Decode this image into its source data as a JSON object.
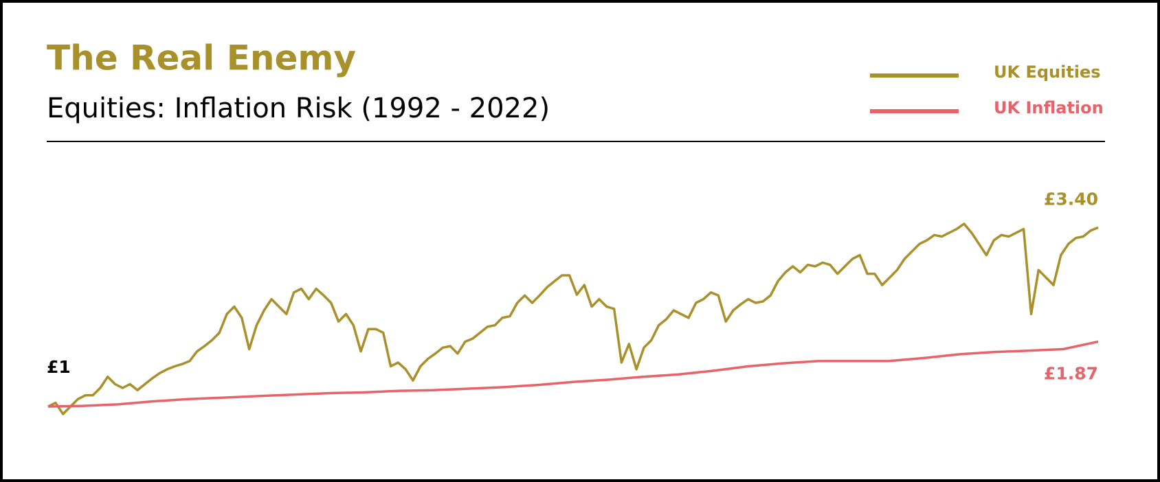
{
  "chart_data": {
    "type": "line",
    "title": "The Real Enemy",
    "subtitle": "Equities: Inflation Risk (1992 - 2022)",
    "series": [
      {
        "name": "UK Equities",
        "color": "#a8902b",
        "values": [
          1.0,
          1.05,
          0.9,
          1.0,
          1.1,
          1.15,
          1.15,
          1.25,
          1.4,
          1.3,
          1.25,
          1.3,
          1.22,
          1.3,
          1.38,
          1.45,
          1.5,
          1.54,
          1.57,
          1.61,
          1.74,
          1.81,
          1.89,
          1.99,
          2.24,
          2.34,
          2.19,
          1.77,
          2.09,
          2.29,
          2.44,
          2.34,
          2.24,
          2.53,
          2.58,
          2.44,
          2.58,
          2.49,
          2.39,
          2.14,
          2.24,
          2.09,
          1.74,
          2.04,
          2.04,
          1.99,
          1.54,
          1.59,
          1.5,
          1.35,
          1.54,
          1.64,
          1.71,
          1.79,
          1.81,
          1.71,
          1.87,
          1.91,
          1.99,
          2.07,
          2.09,
          2.19,
          2.21,
          2.39,
          2.49,
          2.39,
          2.49,
          2.6,
          2.68,
          2.76,
          2.76,
          2.5,
          2.63,
          2.34,
          2.44,
          2.34,
          2.31,
          1.59,
          1.84,
          1.5,
          1.79,
          1.89,
          2.09,
          2.17,
          2.29,
          2.24,
          2.19,
          2.39,
          2.44,
          2.53,
          2.49,
          2.14,
          2.29,
          2.37,
          2.44,
          2.39,
          2.41,
          2.49,
          2.68,
          2.8,
          2.88,
          2.8,
          2.9,
          2.88,
          2.93,
          2.9,
          2.78,
          2.88,
          2.98,
          3.03,
          2.78,
          2.78,
          2.63,
          2.73,
          2.83,
          2.98,
          3.08,
          3.18,
          3.23,
          3.3,
          3.28,
          3.33,
          3.38,
          3.45,
          3.33,
          3.18,
          3.03,
          3.23,
          3.3,
          3.28,
          3.33,
          3.38,
          2.24,
          2.83,
          2.73,
          2.63,
          3.03,
          3.18,
          3.26,
          3.28,
          3.36,
          3.4
        ],
        "value_labels": [
          "£1",
          null,
          null,
          null,
          null,
          null,
          null,
          null,
          null,
          null,
          null,
          null,
          null,
          null,
          null,
          null,
          null,
          null,
          null,
          null,
          null,
          null,
          null,
          null,
          null,
          null,
          null,
          null,
          null,
          null,
          null,
          null,
          null,
          null,
          null,
          null,
          null,
          null,
          null,
          null,
          null,
          null,
          null,
          null,
          null,
          null,
          null,
          null,
          null,
          null,
          null,
          null,
          null,
          null,
          null,
          null,
          null,
          null,
          null,
          null,
          null,
          null,
          null,
          null,
          null,
          null,
          null,
          null,
          null,
          null,
          null,
          null,
          null,
          null,
          null,
          null,
          null,
          null,
          null,
          null,
          null,
          null,
          null,
          null,
          null,
          null,
          null,
          null,
          null,
          null,
          null,
          null,
          null,
          null,
          null,
          null,
          null,
          null,
          null,
          null,
          null,
          null,
          null,
          null,
          null,
          null,
          null,
          null,
          null,
          null,
          null,
          null,
          null,
          null,
          null,
          null,
          null,
          null,
          null,
          null,
          null,
          null,
          null,
          null,
          null,
          null,
          null,
          null,
          null,
          null,
          null,
          null,
          null,
          null,
          null,
          null,
          null,
          null,
          null,
          null,
          null,
          "£3.40"
        ]
      },
      {
        "name": "UK Inflation",
        "color": "#e8626a",
        "values": [
          1.0,
          1.01,
          1.03,
          1.07,
          1.1,
          1.12,
          1.14,
          1.16,
          1.18,
          1.19,
          1.21,
          1.22,
          1.24,
          1.26,
          1.29,
          1.33,
          1.36,
          1.4,
          1.43,
          1.48,
          1.54,
          1.58,
          1.61,
          1.61,
          1.61,
          1.65,
          1.7,
          1.73,
          1.75,
          1.77,
          1.87
        ],
        "value_labels": [
          null,
          null,
          null,
          null,
          null,
          null,
          null,
          null,
          null,
          null,
          null,
          null,
          null,
          null,
          null,
          null,
          null,
          null,
          null,
          null,
          null,
          null,
          null,
          null,
          null,
          null,
          null,
          null,
          null,
          null,
          "£1.87"
        ]
      }
    ]
  }
}
